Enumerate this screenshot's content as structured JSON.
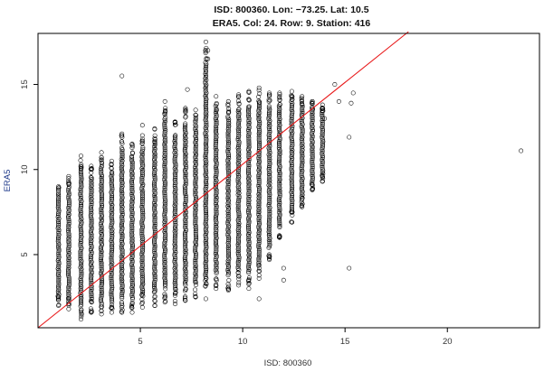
{
  "chart_data": {
    "type": "scatter",
    "title": "ISD: 800360. Lon: −73.25. Lat: 10.5",
    "subtitle": "ERA5.  Col: 24. Row: 9. Station: 416",
    "xlabel": "ISD: 800360",
    "ylabel": "ERA5",
    "xlim": [
      0.0,
      24.5
    ],
    "ylim": [
      0.7,
      18.0
    ],
    "x_ticks": [
      5,
      10,
      15,
      20
    ],
    "y_ticks": [
      5,
      10,
      15
    ],
    "grid": false,
    "point_marker": "open-circle",
    "colors": {
      "points": "#000000",
      "reference_line": "#e8191a",
      "axis_label": "#1f3a8a"
    },
    "reference_line": {
      "type": "identity",
      "x": [
        0.0,
        18.1
      ],
      "y": [
        0.0,
        18.1
      ]
    },
    "series": [
      {
        "columns": [
          {
            "x": 1.0,
            "y_min": 2.0,
            "y_max": 9.0
          },
          {
            "x": 1.5,
            "y_min": 1.8,
            "y_max": 9.6
          },
          {
            "x": 2.1,
            "y_min": 1.2,
            "y_max": 10.8
          },
          {
            "x": 2.6,
            "y_min": 1.6,
            "y_max": 10.2
          },
          {
            "x": 3.1,
            "y_min": 1.5,
            "y_max": 11.0
          },
          {
            "x": 3.6,
            "y_min": 1.6,
            "y_max": 10.5
          },
          {
            "x": 4.1,
            "y_min": 1.6,
            "y_max": 12.1
          },
          {
            "x": 4.6,
            "y_min": 1.6,
            "y_max": 11.5
          },
          {
            "x": 5.1,
            "y_min": 1.9,
            "y_max": 12.0
          },
          {
            "x": 5.7,
            "y_min": 2.0,
            "y_max": 12.4
          },
          {
            "x": 6.2,
            "y_min": 2.2,
            "y_max": 14.0
          },
          {
            "x": 6.7,
            "y_min": 2.1,
            "y_max": 12.8
          },
          {
            "x": 7.2,
            "y_min": 2.3,
            "y_max": 13.6
          },
          {
            "x": 7.7,
            "y_min": 2.5,
            "y_max": 13.5
          },
          {
            "x": 8.2,
            "y_min": 2.4,
            "y_max": 17.5
          },
          {
            "x": 8.7,
            "y_min": 3.0,
            "y_max": 14.3
          },
          {
            "x": 9.3,
            "y_min": 2.9,
            "y_max": 14.0
          },
          {
            "x": 9.8,
            "y_min": 3.2,
            "y_max": 14.4
          },
          {
            "x": 10.3,
            "y_min": 3.0,
            "y_max": 14.6
          },
          {
            "x": 10.8,
            "y_min": 3.6,
            "y_max": 14.8
          },
          {
            "x": 11.3,
            "y_min": 4.7,
            "y_max": 14.5
          },
          {
            "x": 11.8,
            "y_min": 6.0,
            "y_max": 14.5
          },
          {
            "x": 12.4,
            "y_min": 6.9,
            "y_max": 14.6
          },
          {
            "x": 12.9,
            "y_min": 7.8,
            "y_max": 14.3
          },
          {
            "x": 13.4,
            "y_min": 8.8,
            "y_max": 14.0
          },
          {
            "x": 13.9,
            "y_min": 9.3,
            "y_max": 13.8
          }
        ],
        "outliers": [
          {
            "x": 4.1,
            "y": 15.5
          },
          {
            "x": 5.1,
            "y": 12.6
          },
          {
            "x": 7.3,
            "y": 14.7
          },
          {
            "x": 8.3,
            "y": 16.5
          },
          {
            "x": 8.3,
            "y": 17.0
          },
          {
            "x": 10.8,
            "y": 2.4
          },
          {
            "x": 12.0,
            "y": 4.2
          },
          {
            "x": 12.0,
            "y": 3.5
          },
          {
            "x": 14.0,
            "y": 13.0
          },
          {
            "x": 14.5,
            "y": 15.0
          },
          {
            "x": 14.7,
            "y": 14.0
          },
          {
            "x": 15.2,
            "y": 11.9
          },
          {
            "x": 15.2,
            "y": 4.2
          },
          {
            "x": 15.3,
            "y": 13.9
          },
          {
            "x": 15.4,
            "y": 14.5
          },
          {
            "x": 23.6,
            "y": 11.1
          }
        ]
      }
    ]
  }
}
